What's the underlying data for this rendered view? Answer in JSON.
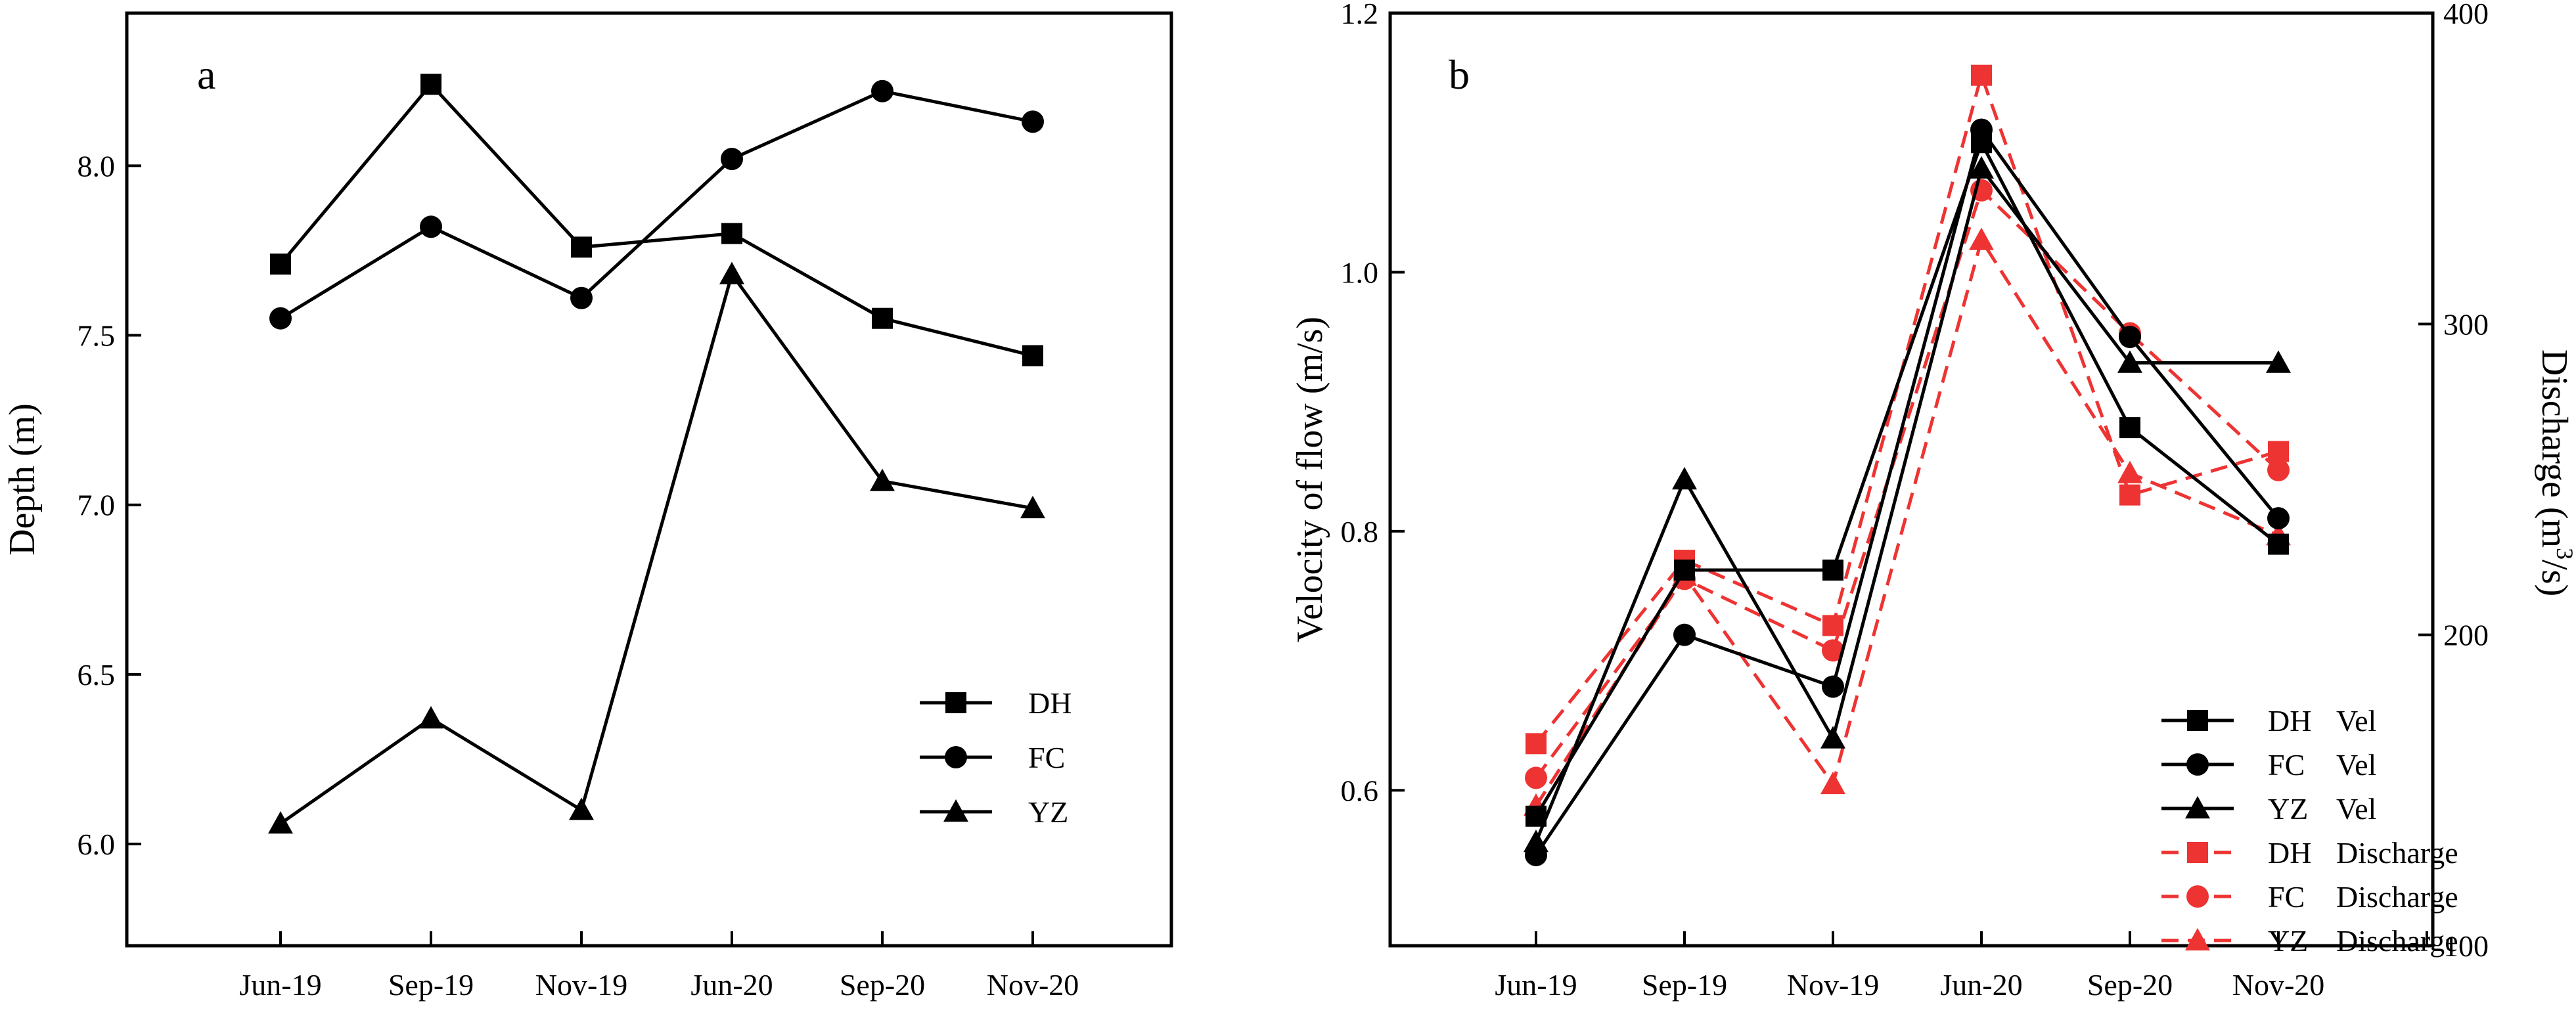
{
  "chart_data": [
    {
      "type": "line",
      "panel_label": "a",
      "categories": [
        "Jun-19",
        "Sep-19",
        "Nov-19",
        "Jun-20",
        "Sep-20",
        "Nov-20"
      ],
      "ylabel": "Depth (m)",
      "ylim": [
        5.7,
        8.45
      ],
      "yticks": [
        "6.0",
        "6.5",
        "7.0",
        "7.5",
        "8.0"
      ],
      "grid": false,
      "legend_position": "bottom-right",
      "series": [
        {
          "name": "DH",
          "marker": "square",
          "color": "#000000",
          "values": [
            7.71,
            8.24,
            7.76,
            7.8,
            7.55,
            7.44
          ]
        },
        {
          "name": "FC",
          "marker": "circle",
          "color": "#000000",
          "values": [
            7.55,
            7.82,
            7.61,
            8.02,
            8.22,
            8.13
          ]
        },
        {
          "name": "YZ",
          "marker": "triangle",
          "color": "#000000",
          "values": [
            6.06,
            6.37,
            6.1,
            7.68,
            7.07,
            6.99
          ]
        }
      ]
    },
    {
      "type": "line",
      "panel_label": "b",
      "categories": [
        "Jun-19",
        "Sep-19",
        "Nov-19",
        "Jun-20",
        "Sep-20",
        "Nov-20"
      ],
      "ylabel": "Velocity of flow (m/s)",
      "ylim": [
        0.48,
        1.2
      ],
      "yticks": [
        "0.6",
        "0.8",
        "1.0",
        "1.2"
      ],
      "y2label_main": "Discharge (m",
      "y2label_sup": "3",
      "y2label_end": "/s)",
      "y2lim": [
        100,
        400
      ],
      "y2ticks": [
        "100",
        "200",
        "300",
        "400"
      ],
      "grid": false,
      "legend_position": "bottom-right",
      "series": [
        {
          "name": "DH",
          "name_suffix": "Vel",
          "axis": "left",
          "marker": "square",
          "color": "#000000",
          "dash": "solid",
          "values": [
            0.58,
            0.77,
            0.77,
            1.1,
            0.88,
            0.79
          ]
        },
        {
          "name": "FC",
          "name_suffix": "Vel",
          "axis": "left",
          "marker": "circle",
          "color": "#000000",
          "dash": "solid",
          "values": [
            0.55,
            0.72,
            0.68,
            1.11,
            0.95,
            0.81
          ]
        },
        {
          "name": "YZ",
          "name_suffix": "Vel",
          "axis": "left",
          "marker": "triangle",
          "color": "#000000",
          "dash": "solid",
          "values": [
            0.56,
            0.84,
            0.64,
            1.08,
            0.93,
            0.93
          ]
        },
        {
          "name": "DH",
          "name_suffix": "Discharge",
          "axis": "right",
          "marker": "square",
          "color": "#ee3333",
          "dash": "dashed",
          "values": [
            165,
            224,
            203,
            380,
            245,
            259
          ]
        },
        {
          "name": "FC",
          "name_suffix": "Discharge",
          "axis": "right",
          "marker": "circle",
          "color": "#ee3333",
          "dash": "dashed",
          "values": [
            154,
            218,
            195,
            343,
            297,
            253
          ]
        },
        {
          "name": "YZ",
          "name_suffix": "Discharge",
          "axis": "right",
          "marker": "triangle",
          "color": "#ee3333",
          "dash": "dashed",
          "values": [
            145,
            219,
            152,
            327,
            252,
            232
          ]
        }
      ]
    }
  ]
}
